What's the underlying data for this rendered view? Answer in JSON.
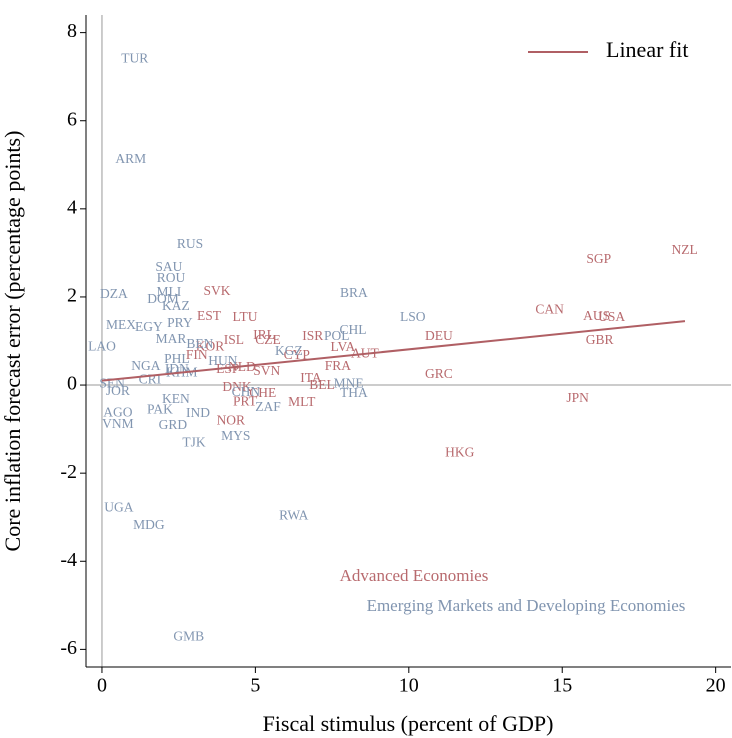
{
  "chart_data": {
    "type": "scatter",
    "xlabel": "Fiscal stimulus (percent of GDP)",
    "ylabel": "Core inflation forecast error (percentage points)",
    "xlim": [
      -0.52,
      20.5
    ],
    "ylim": [
      -6.4,
      8.4
    ],
    "xticks": [
      0,
      5,
      10,
      15,
      20
    ],
    "yticks": [
      -6,
      -4,
      -2,
      0,
      2,
      4,
      6,
      8
    ],
    "legend": "upper right",
    "series": [
      {
        "name": "Advanced Economies",
        "color": "#b86a6e",
        "labels": [
          "SGP",
          "NZL",
          "CAN",
          "AUS",
          "USA",
          "GBR",
          "JPN",
          "HKG",
          "DEU",
          "GRC",
          "SVK",
          "EST",
          "LTU",
          "ISL",
          "KOR",
          "IRL",
          "CZE",
          "ISR",
          "LVA",
          "AUT",
          "FRA",
          "CYP",
          "ITA",
          "BEL",
          "MLT",
          "SVN",
          "NLD",
          "ESP",
          "PRT",
          "CHE",
          "DNK",
          "NOR",
          "FIN"
        ],
        "x": [
          16.19,
          18.99,
          14.59,
          16.12,
          16.61,
          16.22,
          15.5,
          11.66,
          10.98,
          10.98,
          3.75,
          3.49,
          4.66,
          4.3,
          3.52,
          5.28,
          5.41,
          6.87,
          7.85,
          8.57,
          7.69,
          6.35,
          6.81,
          7.17,
          6.51,
          5.37,
          4.56,
          4.1,
          4.66,
          5.24,
          4.4,
          4.2,
          3.09
        ],
        "values": [
          2.84,
          3.05,
          1.7,
          1.55,
          1.52,
          1.0,
          -0.32,
          -1.55,
          1.09,
          0.23,
          2.11,
          1.55,
          1.52,
          1.0,
          0.86,
          1.11,
          1.0,
          1.09,
          0.84,
          0.7,
          0.41,
          0.66,
          0.14,
          -0.02,
          -0.41,
          0.3,
          0.39,
          0.34,
          -0.39,
          -0.2,
          -0.07,
          -0.82,
          0.66
        ]
      },
      {
        "name": "Emerging Markets and Developing Economies",
        "color": "#8195b0",
        "labels": [
          "TUR",
          "ARM",
          "RUS",
          "SAU",
          "ROU",
          "DZA",
          "MLI",
          "DOM",
          "KAZ",
          "BRA",
          "LSO",
          "CHL",
          "MEX",
          "PRY",
          "EGY",
          "LAO",
          "MAR",
          "BEN",
          "KGZ",
          "POL",
          "NGA",
          "HUN",
          "PHL",
          "IDN",
          "SEN",
          "JOR",
          "CRI",
          "KHM",
          "KEN",
          "PAK",
          "IND",
          "GRD",
          "TJK",
          "MYS",
          "ZAF",
          "CHN",
          "THA",
          "MNE",
          "AGO",
          "VNM",
          "UGA",
          "MDG",
          "RWA",
          "GMB"
        ],
        "x": [
          1.07,
          0.94,
          2.87,
          2.18,
          2.25,
          0.39,
          2.18,
          1.99,
          2.41,
          8.21,
          10.13,
          8.18,
          0.62,
          2.54,
          1.53,
          0,
          2.25,
          3.19,
          6.09,
          7.65,
          1.43,
          3.94,
          2.44,
          2.44,
          0.33,
          0.52,
          1.56,
          2.6,
          2.41,
          1.89,
          3.13,
          2.31,
          3.0,
          4.36,
          5.41,
          4.69,
          8.21,
          8.04,
          0.52,
          0.52,
          0.55,
          1.53,
          6.25,
          2.83
        ],
        "values": [
          7.39,
          5.11,
          3.18,
          2.66,
          2.41,
          2.05,
          2.09,
          1.93,
          1.77,
          2.07,
          1.52,
          1.23,
          1.34,
          1.39,
          1.3,
          0.86,
          1.02,
          0.91,
          0.75,
          1.09,
          0.41,
          0.52,
          0.57,
          0.34,
          0.02,
          -0.16,
          0.11,
          0.27,
          -0.34,
          -0.57,
          -0.66,
          -0.93,
          -1.32,
          -1.18,
          -0.52,
          -0.18,
          -0.2,
          0.02,
          -0.64,
          -0.91,
          -2.8,
          -3.2,
          -2.98,
          -5.73
        ]
      }
    ],
    "fit": {
      "name": "Linear fit",
      "color": "#b05f64",
      "x": [
        0,
        19
      ],
      "values": [
        0.1,
        1.45
      ]
    }
  }
}
